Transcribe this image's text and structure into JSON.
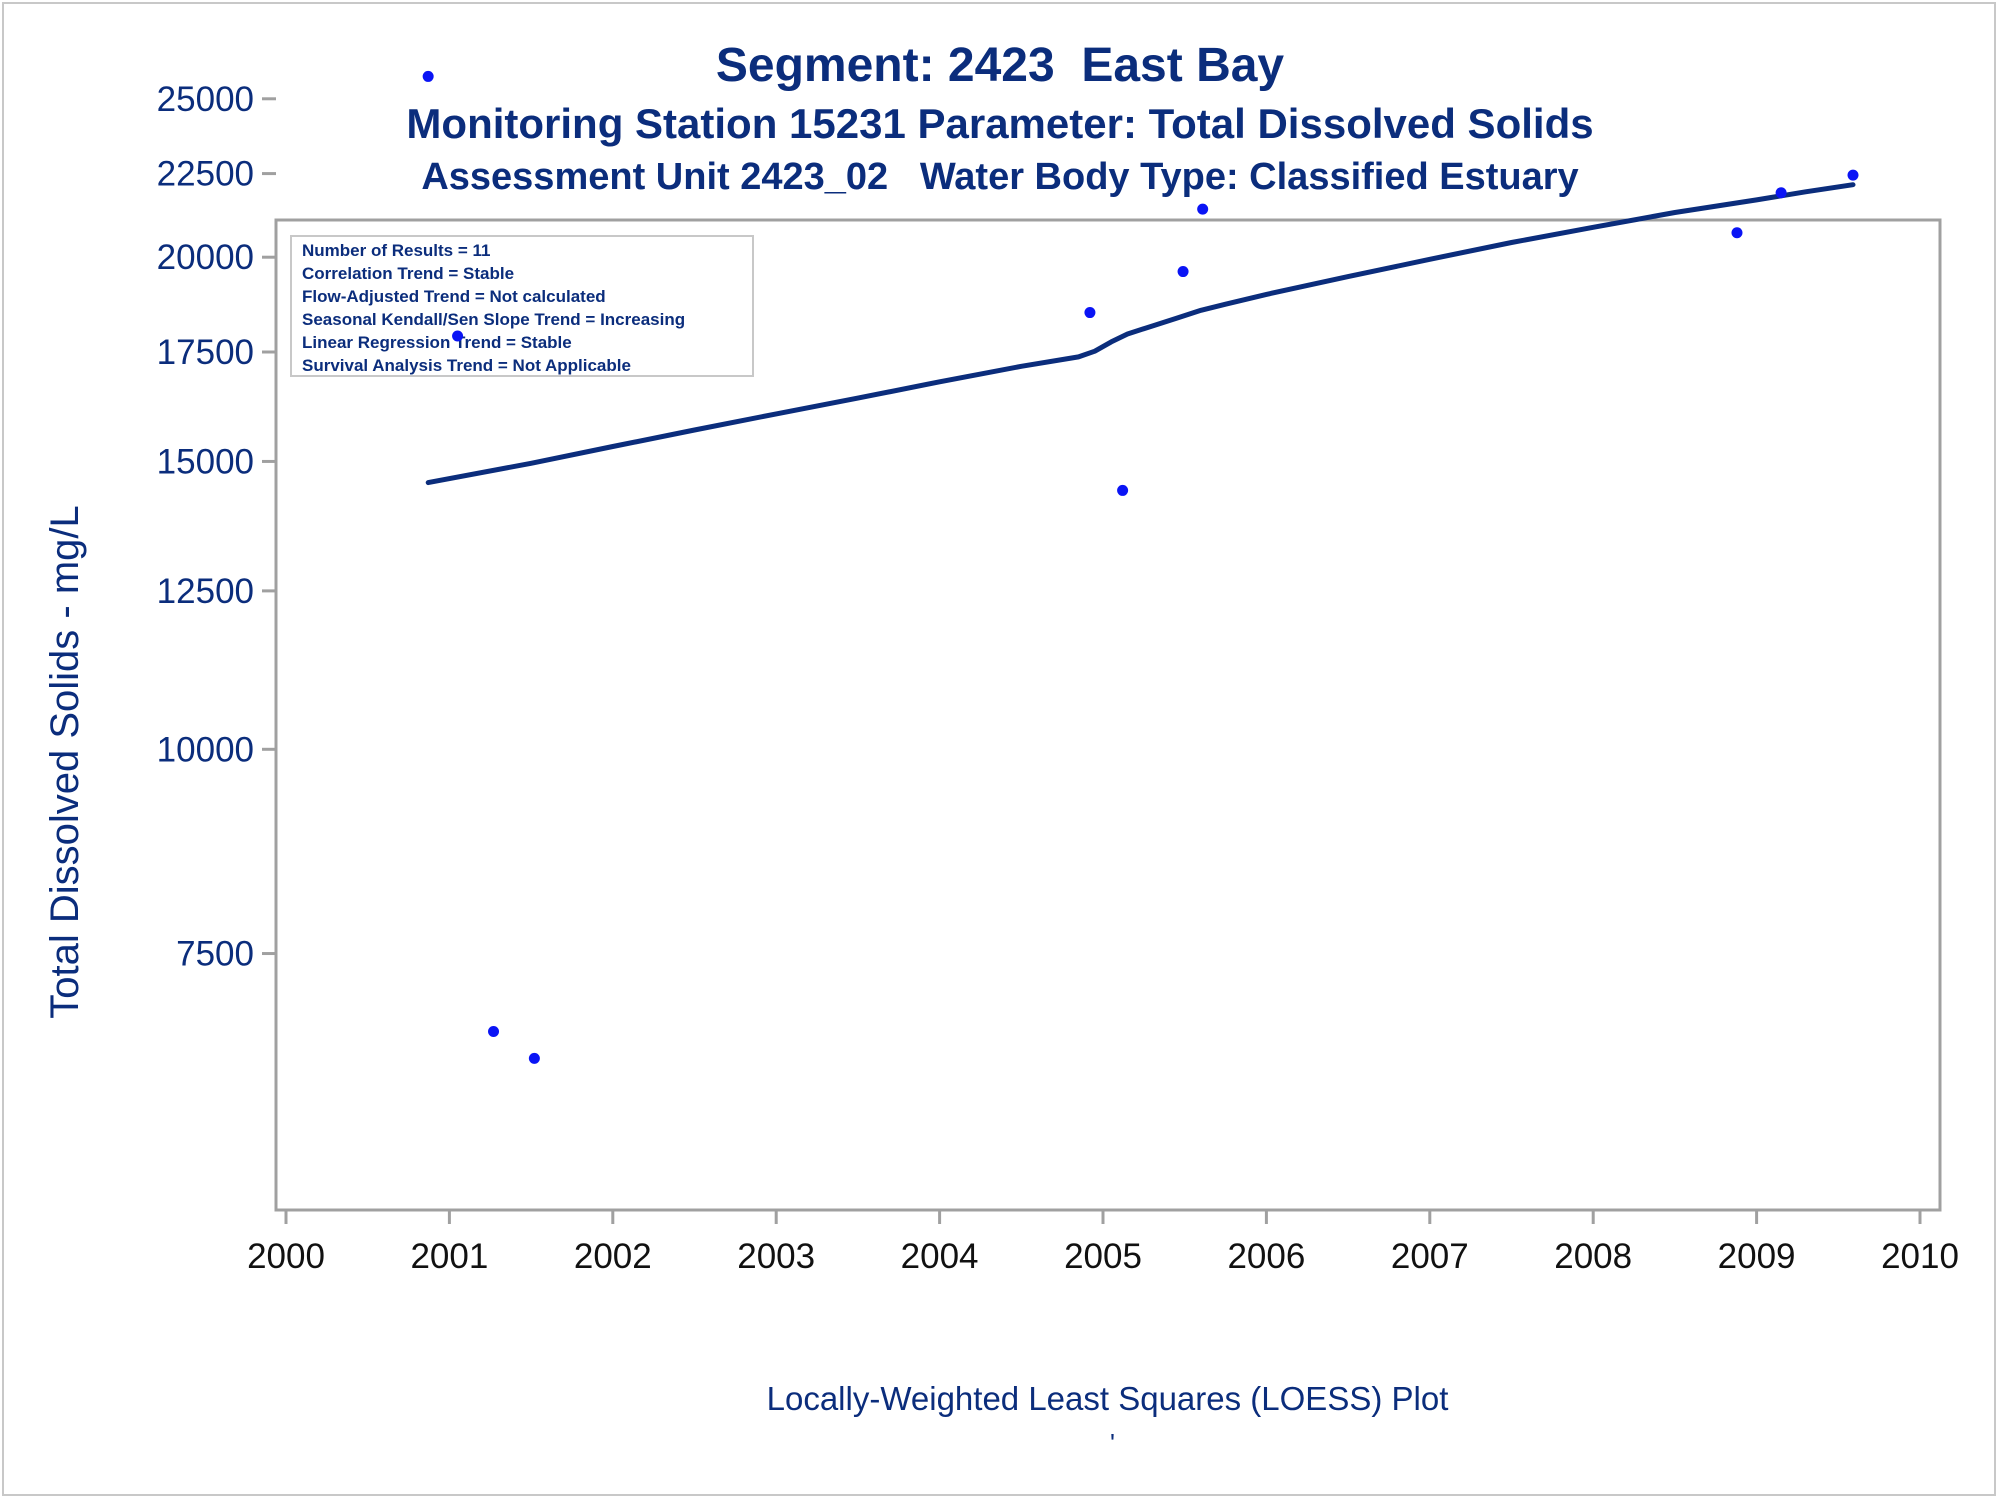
{
  "chart_data": {
    "type": "scatter",
    "title": "Segment: 2423  East Bay",
    "subtitle_line1": "Monitoring Station 15231 Parameter: Total Dissolved Solids",
    "subtitle_line2": "Assessment Unit 2423_02   Water Body Type: Classified Estuary",
    "ylabel": "Total Dissolved Solids - mg/L",
    "xlabel": "",
    "footnote": "Locally-Weighted Least Squares (LOESS) Plot",
    "footnote_mark": "'",
    "x_ticks": [
      "2000",
      "2001",
      "2002",
      "2003",
      "2004",
      "2005",
      "2006",
      "2007",
      "2008",
      "2009",
      "2010"
    ],
    "xlim": [
      2000,
      2010.1
    ],
    "y_scale": "log",
    "y_ticks": [
      "7500",
      "10000",
      "12500",
      "15000",
      "17500",
      "20000",
      "22500",
      "25000"
    ],
    "ylim": [
      6400,
      26200
    ],
    "legend_placement": "top-left inset box",
    "stats_box": [
      "Number of Results = 11",
      "Correlation Trend = Stable",
      "Flow-Adjusted Trend = Not calculated",
      "Seasonal Kendall/Sen Slope Trend = Increasing",
      "Linear Regression Trend = Stable",
      "Survival Analysis Trend = Not Applicable"
    ],
    "series": [
      {
        "kind": "points",
        "x": [
          2000.87,
          2001.05,
          2001.27,
          2001.52,
          2004.92,
          2005.12,
          2005.49,
          2005.61,
          2008.88,
          2009.15,
          2009.59
        ],
        "y": [
          25800,
          17900,
          6720,
          6470,
          18500,
          14400,
          19600,
          21400,
          20700,
          21900,
          22450
        ]
      },
      {
        "kind": "loess",
        "x": [
          2000.87,
          2001.5,
          2002.0,
          2002.5,
          2003.0,
          2003.5,
          2004.0,
          2004.5,
          2004.85,
          2004.95,
          2005.05,
          2005.15,
          2005.3,
          2005.45,
          2005.6,
          2005.75,
          2006.0,
          2006.5,
          2007.0,
          2007.5,
          2008.0,
          2008.5,
          2009.0,
          2009.3,
          2009.59
        ],
        "y": [
          14560,
          14960,
          15320,
          15680,
          16040,
          16400,
          16780,
          17150,
          17380,
          17520,
          17750,
          17950,
          18150,
          18350,
          18560,
          18720,
          18980,
          19460,
          19940,
          20420,
          20860,
          21300,
          21680,
          21930,
          22150
        ]
      }
    ],
    "colors": {
      "text": "#0b2d7c",
      "line": "#0b2d7c",
      "points": "#0a14f5",
      "frame": "#a0a0a0",
      "tick_labels_x": "#111111"
    }
  }
}
